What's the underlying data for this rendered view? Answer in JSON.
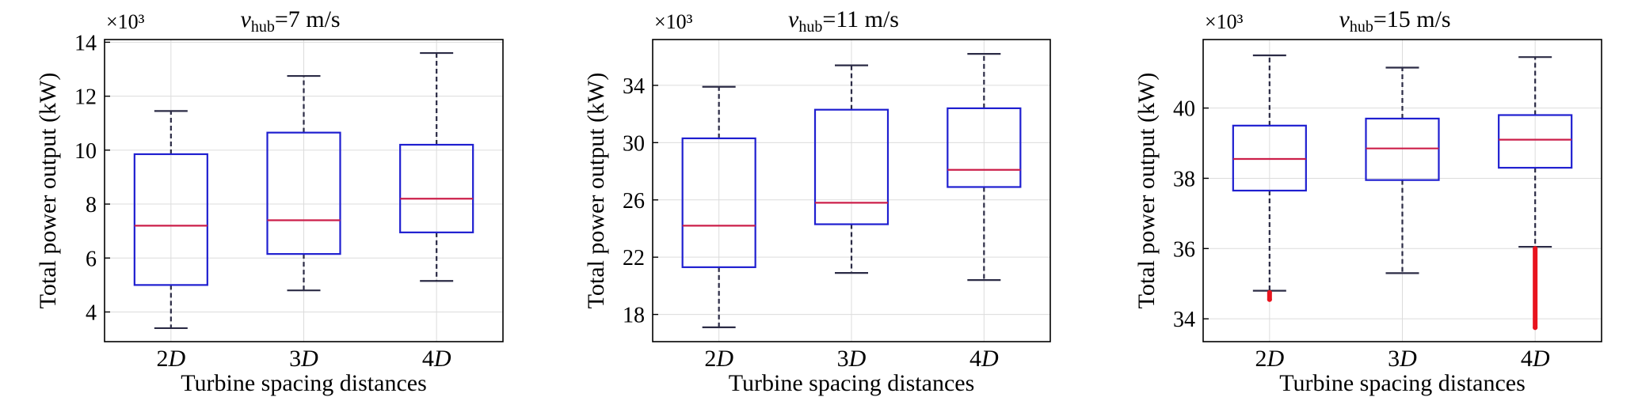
{
  "chart_data": [
    {
      "type": "box",
      "title": "=7 m/s",
      "title_var": "v",
      "title_sub": "hub",
      "xlabel": "Turbine spacing distances",
      "ylabel": "Total power output (kW)",
      "multiplier": "×10³",
      "categories": [
        "2D",
        "3D",
        "4D"
      ],
      "category_number": [
        "2",
        "3",
        "4"
      ],
      "category_symbol": [
        "D",
        "D",
        "D"
      ],
      "ylim": [
        2.9,
        14.1
      ],
      "yticks": [
        4,
        6,
        8,
        10,
        12,
        14
      ],
      "grid": true,
      "boxes": [
        {
          "whisker_low": 3.4,
          "q1": 5.0,
          "median": 7.2,
          "q3": 9.85,
          "whisker_high": 11.45,
          "outliers": []
        },
        {
          "whisker_low": 4.8,
          "q1": 6.15,
          "median": 7.4,
          "q3": 10.65,
          "whisker_high": 12.75,
          "outliers": []
        },
        {
          "whisker_low": 5.15,
          "q1": 6.95,
          "median": 8.2,
          "q3": 10.2,
          "whisker_high": 13.6,
          "outliers": []
        }
      ]
    },
    {
      "type": "box",
      "title": "=11 m/s",
      "title_var": "v",
      "title_sub": "hub",
      "xlabel": "Turbine spacing distances",
      "ylabel": "Total power output (kW)",
      "multiplier": "×10³",
      "categories": [
        "2D",
        "3D",
        "4D"
      ],
      "category_number": [
        "2",
        "3",
        "4"
      ],
      "category_symbol": [
        "D",
        "D",
        "D"
      ],
      "ylim": [
        16.1,
        37.2
      ],
      "yticks": [
        18,
        22,
        26,
        30,
        34
      ],
      "grid": true,
      "boxes": [
        {
          "whisker_low": 17.1,
          "q1": 21.3,
          "median": 24.2,
          "q3": 30.3,
          "whisker_high": 33.9,
          "outliers": []
        },
        {
          "whisker_low": 20.9,
          "q1": 24.3,
          "median": 25.8,
          "q3": 32.3,
          "whisker_high": 35.4,
          "outliers": []
        },
        {
          "whisker_low": 20.4,
          "q1": 26.9,
          "median": 28.1,
          "q3": 32.4,
          "whisker_high": 36.2,
          "outliers": []
        }
      ]
    },
    {
      "type": "box",
      "title": "=15 m/s",
      "title_var": "v",
      "title_sub": "hub",
      "xlabel": "Turbine spacing distances",
      "ylabel": "Total power output (kW)",
      "multiplier": "×10³",
      "categories": [
        "2D",
        "3D",
        "4D"
      ],
      "category_number": [
        "2",
        "3",
        "4"
      ],
      "category_symbol": [
        "D",
        "D",
        "D"
      ],
      "ylim": [
        33.35,
        41.95
      ],
      "yticks": [
        34,
        36,
        38,
        40
      ],
      "grid": true,
      "boxes": [
        {
          "whisker_low": 34.8,
          "q1": 37.65,
          "median": 38.55,
          "q3": 39.5,
          "whisker_high": 41.5,
          "outliers": [
            34.55,
            34.75
          ]
        },
        {
          "whisker_low": 35.3,
          "q1": 37.95,
          "median": 38.85,
          "q3": 39.7,
          "whisker_high": 41.15,
          "outliers": []
        },
        {
          "whisker_low": 36.05,
          "q1": 38.3,
          "median": 39.1,
          "q3": 39.8,
          "whisker_high": 41.45,
          "outliers": [
            33.75,
            36.0
          ]
        }
      ]
    }
  ],
  "colors": {
    "box": "#1f1fd0",
    "median": "#cc1f4a",
    "whisker": "#2b2b45",
    "outlier": "#e8141e",
    "grid": "#dcdcdc",
    "axis": "#000000"
  }
}
